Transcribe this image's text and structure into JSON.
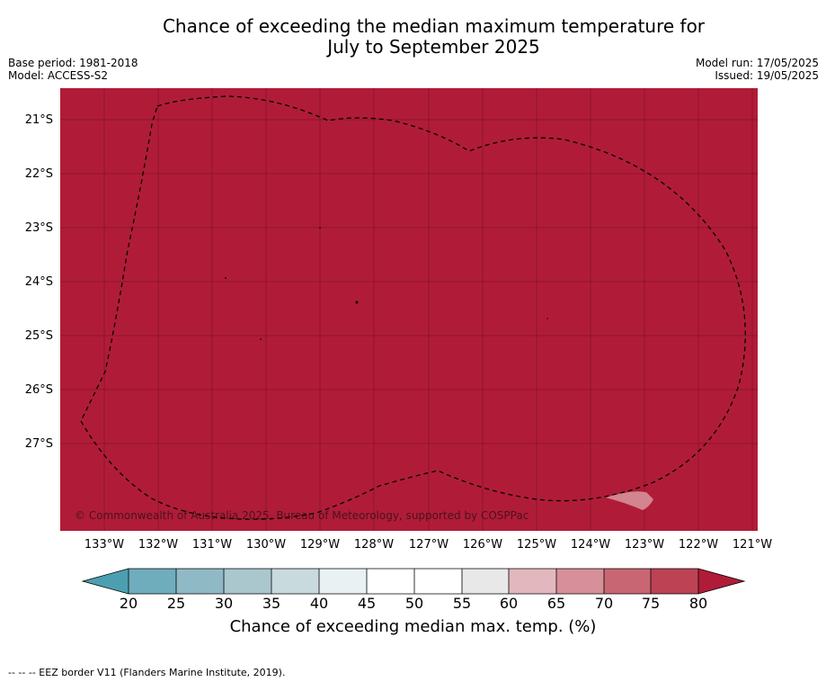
{
  "title_line1": "Chance of exceeding the median maximum temperature for",
  "title_line2": "July to September 2025",
  "base_period": "Base period: 1981-2018",
  "model": "Model: ACCESS-S2",
  "model_run": "Model run: 17/05/2025",
  "issued": "Issued: 19/05/2025",
  "copyright": "© Commonwealth of Australia 2025, Bureau of Meteorology, supported by COSPPac",
  "lat_labels": [
    "21°S",
    "22°S",
    "23°S",
    "24°S",
    "25°S",
    "26°S",
    "27°S"
  ],
  "lon_labels": [
    "133°W",
    "132°W",
    "131°W",
    "130°W",
    "129°W",
    "128°W",
    "127°W",
    "126°W",
    "125°W",
    "124°W",
    "123°W",
    "122°W",
    "121°W"
  ],
  "colorbar": {
    "ticks": [
      "20",
      "25",
      "30",
      "35",
      "40",
      "45",
      "50",
      "55",
      "60",
      "65",
      "70",
      "75",
      "80"
    ],
    "label": "Chance of exceeding median max. temp. (%)",
    "colors": [
      "#4c9fb0",
      "#6fadbd",
      "#8fbac5",
      "#a9c7cd",
      "#c9dadf",
      "#eaf1f3",
      "#ffffff",
      "#ffffff",
      "#e8e8e8",
      "#e2b8be",
      "#d78f99",
      "#c96673",
      "#bd4254",
      "#b01c38"
    ]
  },
  "map_fill_color": "#b01c38",
  "footnote": "--  --  -- EEZ border V11 (Flanders Marine Institute, 2019)."
}
